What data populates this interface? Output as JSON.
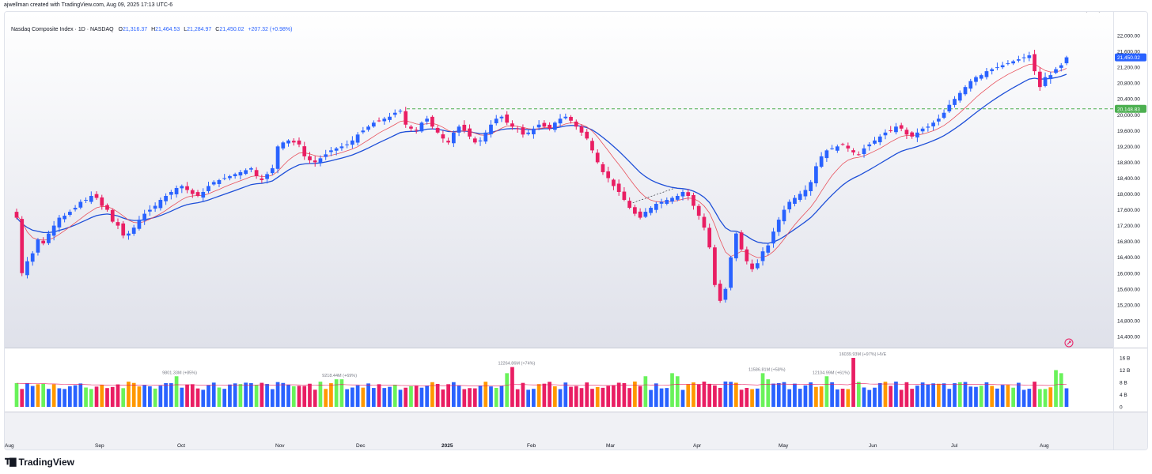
{
  "header": {
    "created_by": "ajwellman created with TradingView.com, Aug 09, 2025 17:13 UTC-6"
  },
  "legend": {
    "symbol": "Nasdaq Composite Index · 1D · NASDAQ",
    "open_label": "O",
    "open": "21,316.37",
    "high_label": "H",
    "high": "21,464.53",
    "low_label": "L",
    "low": "21,284.97",
    "close_label": "C",
    "close": "21,450.02",
    "change": "+207.32 (+0.98%)"
  },
  "price_axis": {
    "ticks": [
      "22,000.00",
      "21,600.00",
      "21,200.00",
      "20,800.00",
      "20,400.00",
      "20,000.00",
      "19,600.00",
      "19,200.00",
      "18,800.00",
      "18,400.00",
      "18,000.00",
      "17,600.00",
      "17,200.00",
      "16,800.00",
      "16,400.00",
      "16,000.00",
      "15,600.00",
      "15,200.00",
      "14,800.00",
      "14,400.00"
    ],
    "last_price": "21,450.02",
    "level_price": "20,148.83"
  },
  "volume_axis": {
    "ticks": [
      "16 B",
      "12 B",
      "8 B",
      "4 B",
      "0"
    ]
  },
  "volume_annotations": [
    "9801.33M (+85%)",
    "9218.44M (+69%)",
    "12264.86M (+74%)",
    "11586.81M (+58%)",
    "12104.99M (+61%)",
    "16039.93M (+97%) HVE",
    "12318.61M (+40%)"
  ],
  "time_axis": {
    "labels": [
      "Aug",
      "Sep",
      "Oct",
      "Nov",
      "Dec",
      "2025",
      "Feb",
      "Mar",
      "Apr",
      "May",
      "Jun",
      "Jul",
      "Aug"
    ]
  },
  "colors": {
    "up": "#2962ff",
    "down": "#e91e63",
    "ema_fast": "#e8505b",
    "ema_slow": "#1e4fd8",
    "level": "#4caf50",
    "vol_green": "#69f25a",
    "vol_orange": "#ff9800"
  },
  "chart_data": {
    "type": "candlestick",
    "symbol": "Nasdaq Composite Index",
    "interval": "1D",
    "ylim": [
      14400,
      22000
    ],
    "horizontal_level": 20148.83,
    "closes": [
      17400,
      16000,
      16300,
      16500,
      16850,
      16750,
      17000,
      17200,
      17400,
      17450,
      17550,
      17650,
      17800,
      17850,
      17950,
      17900,
      17700,
      17600,
      17300,
      17200,
      16950,
      17000,
      17150,
      17350,
      17500,
      17600,
      17700,
      17850,
      17950,
      18050,
      18150,
      18200,
      18100,
      18000,
      17950,
      18050,
      18200,
      18300,
      18350,
      18400,
      18450,
      18500,
      18550,
      18600,
      18650,
      18450,
      18350,
      18500,
      18650,
      19200,
      19300,
      19350,
      19300,
      19250,
      18950,
      18850,
      18800,
      18900,
      19000,
      19100,
      19150,
      19200,
      19250,
      19350,
      19500,
      19600,
      19700,
      19800,
      19850,
      19900,
      19950,
      20050,
      20100,
      19750,
      19650,
      19600,
      19800,
      19900,
      19700,
      19550,
      19400,
      19300,
      19550,
      19700,
      19600,
      19450,
      19300,
      19350,
      19550,
      19750,
      19900,
      19950,
      19800,
      19700,
      19650,
      19500,
      19550,
      19650,
      19750,
      19700,
      19650,
      19800,
      19900,
      19950,
      19850,
      19700,
      19550,
      19400,
      19100,
      18800,
      18550,
      18400,
      18200,
      18050,
      17850,
      17650,
      17500,
      17400,
      17550,
      17650,
      17750,
      17800,
      17850,
      17900,
      17950,
      18050,
      17950,
      17700,
      17450,
      17150,
      16650,
      15700,
      15300,
      15600,
      16400,
      17000,
      16600,
      16300,
      16100,
      16250,
      16550,
      16700,
      17050,
      17350,
      17600,
      17800,
      17900,
      18000,
      18100,
      18300,
      18700,
      18950,
      19100,
      19150,
      19200,
      19250,
      19150,
      19050,
      19000,
      19150,
      19250,
      19350,
      19450,
      19550,
      19600,
      19700,
      19650,
      19500,
      19450,
      19550,
      19650,
      19700,
      19800,
      19900,
      20050,
      20250,
      20400,
      20550,
      20700,
      20850,
      20950,
      21000,
      21100,
      21150,
      21200,
      21250,
      21300,
      21350,
      21400,
      21450,
      21500,
      21100,
      20700,
      20950,
      21000,
      21150,
      21250,
      21450
    ]
  }
}
